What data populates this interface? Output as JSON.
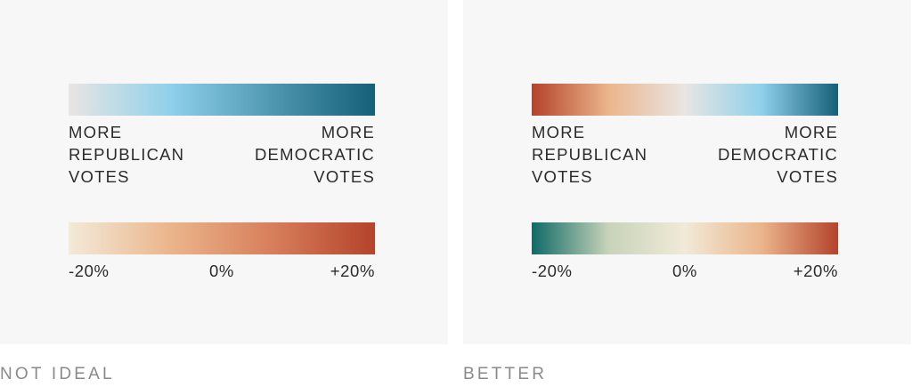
{
  "colors": {
    "panel_bg": "#f7f7f7",
    "page_bg": "#ffffff",
    "text": "#2b2b2b",
    "caption": "#8a8a8a"
  },
  "panels": [
    {
      "caption": "NOT IDEAL",
      "votes_scale": {
        "left_label": "MORE\nREPUBLICAN\nVOTES",
        "right_label": "MORE\nDEMOCRATIC\nVOTES",
        "gradient": [
          "#e9e5e3",
          "#8fd0ea",
          "#4f97b0",
          "#165f79"
        ]
      },
      "percent_scale": {
        "ticks": [
          "-20%",
          "0%",
          "+20%"
        ],
        "gradient": [
          "#f3ead9",
          "#ebb58b",
          "#d77e5a",
          "#b4432b"
        ]
      }
    },
    {
      "caption": "BETTER",
      "votes_scale": {
        "left_label": "MORE\nREPUBLICAN\nVOTES",
        "right_label": "MORE\nDEMOCRATIC\nVOTES",
        "gradient": [
          "#b4432b",
          "#ebb58b",
          "#e9e5e3",
          "#8fd0ea",
          "#165f79"
        ]
      },
      "percent_scale": {
        "ticks": [
          "-20%",
          "0%",
          "+20%"
        ],
        "gradient": [
          "#0f6a67",
          "#c7d3b9",
          "#f1ead8",
          "#ebb58b",
          "#b4432b"
        ]
      }
    }
  ]
}
